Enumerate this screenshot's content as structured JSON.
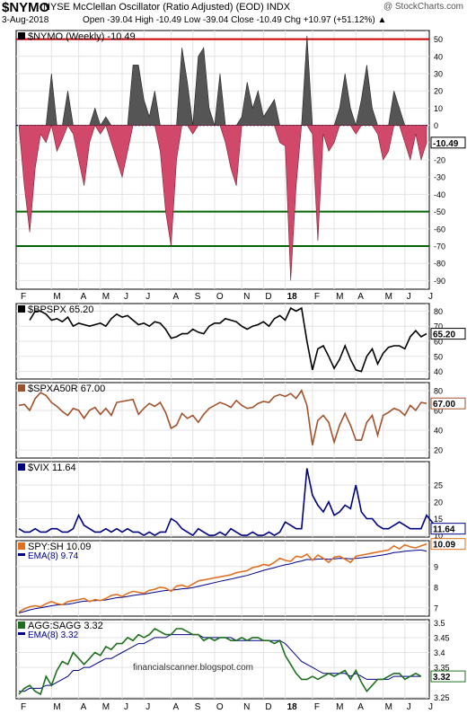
{
  "header": {
    "symbol": "$NYMO",
    "description": "NYSE McClellan Oscillator (Ratio Adjusted) (EOD)  INDX",
    "logo": "@ StockCharts.com",
    "date": "3-Aug-2018",
    "ohlc": "Open -39.04  High -10.49  Low -39.04  Close -10.49  Chg +10.97 (+51.12%) ▲"
  },
  "watermark": "financialscanner.blogspot.com",
  "x_axis": {
    "labels": [
      "F",
      "M",
      "A",
      "M",
      "J",
      "J",
      "A",
      "S",
      "O",
      "N",
      "D",
      "18",
      "F",
      "M",
      "A",
      "M",
      "J",
      "J"
    ],
    "label_weeks": [
      0,
      6,
      11,
      15,
      19,
      23,
      28,
      32,
      36,
      41,
      45,
      49,
      54,
      58,
      62,
      67,
      71,
      75
    ]
  },
  "chart_data": [
    {
      "type": "area",
      "name": "nymo",
      "title": "$NYMO (Weekly) -10.49",
      "ylim": [
        -95,
        55
      ],
      "ticks": [
        50,
        40,
        30,
        20,
        10,
        0,
        -10,
        -20,
        -30,
        -40,
        -50,
        -60,
        -70,
        -80,
        -90
      ],
      "last_label": "-10.49",
      "reference_lines": {
        "red": [
          50
        ],
        "green": [
          -50,
          -70
        ],
        "dotted": [
          0
        ]
      },
      "values": [
        0,
        -35,
        -62,
        -25,
        -5,
        -10,
        30,
        -15,
        -8,
        20,
        -5,
        -20,
        -35,
        -10,
        10,
        -5,
        5,
        -10,
        -20,
        -30,
        -15,
        35,
        35,
        15,
        5,
        20,
        -15,
        -50,
        -70,
        -20,
        45,
        25,
        -5,
        40,
        45,
        10,
        0,
        30,
        -10,
        -25,
        -35,
        5,
        25,
        10,
        20,
        5,
        10,
        15,
        -10,
        -12,
        -90,
        -35,
        0,
        52,
        -5,
        -67,
        -5,
        -15,
        -10,
        10,
        30,
        10,
        -5,
        15,
        35,
        10,
        -5,
        -20,
        -15,
        20,
        10,
        -10,
        -20,
        -5,
        -20,
        -10
      ],
      "colors": {
        "positive": "#555555",
        "negative": "#d2486a"
      }
    },
    {
      "type": "line",
      "name": "bpspx",
      "title": "$BPSPX 65.20",
      "ylim": [
        35,
        85
      ],
      "ticks": [
        80,
        70,
        60,
        50,
        40
      ],
      "last_label": "65.20",
      "color": "#000000",
      "values": [
        72,
        75,
        74,
        80,
        80,
        78,
        74,
        75,
        73,
        76,
        70,
        72,
        71,
        70,
        71,
        72,
        70,
        75,
        78,
        76,
        77,
        74,
        71,
        72,
        70,
        73,
        72,
        68,
        62,
        63,
        65,
        65,
        68,
        66,
        65,
        70,
        72,
        72,
        75,
        74,
        73,
        70,
        68,
        70,
        71,
        73,
        70,
        75,
        77,
        74,
        82,
        80,
        82,
        60,
        41,
        55,
        57,
        50,
        42,
        48,
        57,
        48,
        41,
        40,
        50,
        55,
        45,
        52,
        56,
        57,
        57,
        55,
        63,
        67,
        63,
        65
      ],
      "visible_from": 2
    },
    {
      "type": "line",
      "name": "spxa50r",
      "title": "$SPXA50R 67.00",
      "ylim": [
        12,
        88
      ],
      "ticks": [
        80,
        60,
        40,
        20
      ],
      "last_label": "67.00",
      "color": "#a0522d",
      "values": [
        65,
        66,
        60,
        72,
        78,
        75,
        68,
        64,
        59,
        55,
        62,
        60,
        52,
        60,
        63,
        56,
        62,
        55,
        68,
        69,
        70,
        71,
        56,
        62,
        67,
        64,
        68,
        58,
        42,
        45,
        57,
        52,
        55,
        48,
        56,
        62,
        65,
        68,
        66,
        63,
        70,
        65,
        62,
        63,
        67,
        69,
        68,
        74,
        76,
        74,
        77,
        72,
        80,
        65,
        25,
        50,
        55,
        48,
        28,
        45,
        57,
        45,
        30,
        30,
        48,
        55,
        35,
        55,
        58,
        62,
        60,
        55,
        65,
        60,
        68,
        67
      ]
    },
    {
      "type": "line",
      "name": "vix",
      "title": "$VIX 11.64",
      "ylim": [
        9.5,
        32
      ],
      "ticks": [
        25,
        20,
        15,
        10
      ],
      "last_label": "11.64",
      "color": "#000080",
      "values": [
        12,
        11,
        11,
        12,
        11,
        11,
        12,
        12,
        11,
        11,
        12,
        16,
        13,
        12,
        11,
        11,
        12,
        11,
        12,
        11,
        12,
        11,
        11,
        10,
        11,
        10,
        11,
        11,
        15,
        14,
        12,
        11,
        10,
        12,
        11,
        10,
        10,
        11,
        10,
        12,
        11,
        10,
        10,
        11,
        10,
        10,
        11,
        10,
        11,
        14,
        13,
        12,
        12,
        30,
        22,
        19,
        17,
        20,
        16,
        17,
        19,
        18,
        25,
        17,
        15,
        15,
        13,
        12,
        12,
        13,
        14,
        13,
        12,
        12,
        12,
        16,
        14,
        12
      ]
    },
    {
      "type": "line",
      "name": "spy_sh",
      "title": "SPY:SH 10.09",
      "ylim": [
        6.6,
        10.25
      ],
      "ticks": [
        9,
        8,
        7
      ],
      "last_label": "10.09",
      "series": [
        {
          "name": "SPY:SH 10.09",
          "color": "#e07020",
          "values": [
            6.8,
            6.95,
            7.05,
            7.1,
            7.05,
            7.2,
            7.3,
            7.2,
            7.15,
            7.3,
            7.35,
            7.4,
            7.45,
            7.3,
            7.4,
            7.35,
            7.45,
            7.6,
            7.65,
            7.55,
            7.7,
            7.8,
            7.75,
            7.7,
            7.85,
            7.9,
            8.0,
            7.95,
            7.8,
            8.05,
            8.1,
            8.0,
            8.15,
            8.3,
            8.35,
            8.4,
            8.45,
            8.5,
            8.55,
            8.6,
            8.7,
            8.75,
            8.8,
            8.95,
            9.0,
            9.1,
            9.05,
            9.2,
            9.4,
            9.3,
            9.25,
            9.5,
            9.45,
            9.6,
            9.3,
            9.55,
            9.4,
            9.2,
            9.45,
            9.5,
            9.35,
            9.2,
            9.5,
            9.55,
            9.6,
            9.65,
            9.7,
            9.75,
            9.8,
            10.0,
            9.85,
            10.05,
            9.95,
            9.9,
            10.0,
            10.09
          ]
        },
        {
          "name": "EMA(8) 9.74",
          "color": "#00008b",
          "values": [
            6.75,
            6.82,
            6.9,
            6.96,
            7.0,
            7.05,
            7.1,
            7.14,
            7.15,
            7.18,
            7.22,
            7.28,
            7.32,
            7.33,
            7.35,
            7.36,
            7.38,
            7.44,
            7.49,
            7.51,
            7.55,
            7.6,
            7.64,
            7.66,
            7.71,
            7.75,
            7.8,
            7.84,
            7.85,
            7.88,
            7.92,
            7.94,
            7.98,
            8.04,
            8.1,
            8.16,
            8.22,
            8.28,
            8.34,
            8.39,
            8.45,
            8.51,
            8.57,
            8.65,
            8.73,
            8.81,
            8.88,
            8.94,
            9.02,
            9.08,
            9.13,
            9.21,
            9.27,
            9.34,
            9.33,
            9.36,
            9.37,
            9.35,
            9.37,
            9.4,
            9.39,
            9.37,
            9.39,
            9.42,
            9.45,
            9.48,
            9.52,
            9.56,
            9.61,
            9.67,
            9.7,
            9.74,
            9.76,
            9.78,
            9.8,
            9.74
          ]
        }
      ],
      "legend": [
        "SPY:SH 10.09",
        "EMA(8) 9.74"
      ]
    },
    {
      "type": "line",
      "name": "agg_sagg",
      "title": "AGG:SAGG 3.32",
      "ylim": [
        3.245,
        3.51
      ],
      "ticks": [
        3.5,
        3.45,
        3.4,
        3.35,
        3.25
      ],
      "last_label": "3.32",
      "series": [
        {
          "name": "AGG:SAGG 3.32",
          "color": "#1f6f1f",
          "values": [
            3.26,
            3.28,
            3.29,
            3.27,
            3.26,
            3.32,
            3.29,
            3.34,
            3.37,
            3.36,
            3.4,
            3.38,
            3.36,
            3.38,
            3.4,
            3.39,
            3.42,
            3.41,
            3.43,
            3.43,
            3.45,
            3.44,
            3.46,
            3.45,
            3.46,
            3.48,
            3.47,
            3.46,
            3.46,
            3.48,
            3.48,
            3.47,
            3.46,
            3.46,
            3.44,
            3.45,
            3.44,
            3.45,
            3.45,
            3.44,
            3.44,
            3.45,
            3.44,
            3.45,
            3.45,
            3.44,
            3.44,
            3.43,
            3.44,
            3.39,
            3.36,
            3.33,
            3.31,
            3.31,
            3.32,
            3.31,
            3.32,
            3.33,
            3.32,
            3.33,
            3.34,
            3.31,
            3.34,
            3.3,
            3.27,
            3.29,
            3.31,
            3.31,
            3.32,
            3.33,
            3.33,
            3.31,
            3.32,
            3.33,
            3.32
          ]
        },
        {
          "name": "EMA(8) 3.32",
          "color": "#00008b",
          "values": [
            3.27,
            3.27,
            3.28,
            3.28,
            3.28,
            3.29,
            3.29,
            3.3,
            3.31,
            3.32,
            3.34,
            3.34,
            3.35,
            3.35,
            3.36,
            3.37,
            3.38,
            3.38,
            3.39,
            3.4,
            3.41,
            3.42,
            3.43,
            3.43,
            3.44,
            3.45,
            3.45,
            3.45,
            3.46,
            3.46,
            3.46,
            3.46,
            3.46,
            3.46,
            3.45,
            3.45,
            3.45,
            3.45,
            3.45,
            3.45,
            3.44,
            3.44,
            3.44,
            3.44,
            3.44,
            3.44,
            3.44,
            3.44,
            3.44,
            3.43,
            3.41,
            3.39,
            3.37,
            3.36,
            3.35,
            3.34,
            3.33,
            3.33,
            3.33,
            3.33,
            3.33,
            3.32,
            3.33,
            3.32,
            3.31,
            3.31,
            3.31,
            3.31,
            3.31,
            3.32,
            3.32,
            3.32,
            3.32,
            3.32,
            3.32
          ]
        }
      ],
      "legend": [
        "AGG:SAGG 3.32",
        "EMA(8) 3.32"
      ]
    }
  ]
}
